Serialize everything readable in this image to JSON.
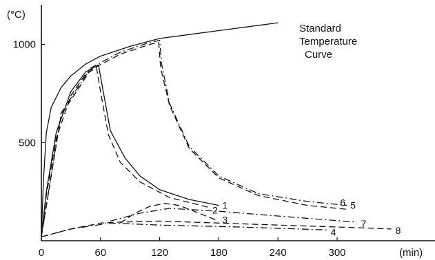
{
  "chart_data": {
    "type": "line",
    "xlabel": "(min)",
    "ylabel": "(°C)",
    "xlim": [
      0,
      330
    ],
    "ylim": [
      0,
      1100
    ],
    "xticks": [
      0,
      60,
      120,
      180,
      240,
      300
    ],
    "yticks": [
      500,
      1000
    ],
    "grid": false,
    "annotation": "Standard Temperature Curve",
    "series": [
      {
        "name": "Standard Temperature Curve",
        "style": "solid",
        "x": [
          0,
          2,
          5,
          10,
          20,
          30,
          45,
          60,
          90,
          120,
          150,
          180,
          210,
          240
        ],
        "y": [
          20,
          300,
          550,
          680,
          780,
          840,
          900,
          940,
          990,
          1030,
          1050,
          1070,
          1090,
          1110
        ]
      },
      {
        "name": "1",
        "label": "1",
        "style": "solid",
        "x": [
          0,
          5,
          15,
          30,
          45,
          58,
          62,
          70,
          85,
          100,
          120,
          150,
          180
        ],
        "y": [
          20,
          250,
          550,
          760,
          860,
          895,
          780,
          560,
          420,
          330,
          260,
          210,
          180
        ]
      },
      {
        "name": "2",
        "label": "2",
        "style": "dashed",
        "x": [
          0,
          5,
          15,
          30,
          45,
          56,
          60,
          68,
          80,
          100,
          130,
          170
        ],
        "y": [
          20,
          230,
          520,
          740,
          850,
          880,
          760,
          540,
          400,
          300,
          220,
          170
        ]
      },
      {
        "name": "3",
        "label": "3",
        "style": "dashed",
        "x": [
          80,
          95,
          110,
          125,
          140,
          155,
          170,
          180
        ],
        "y": [
          90,
          140,
          175,
          190,
          180,
          150,
          120,
          100
        ]
      },
      {
        "name": "4",
        "label": "4",
        "style": "dashdot",
        "x": [
          0,
          30,
          70,
          120,
          200,
          290
        ],
        "y": [
          20,
          60,
          90,
          80,
          70,
          55
        ]
      },
      {
        "name": "5",
        "label": "5",
        "style": "dashdot",
        "x": [
          0,
          20,
          50,
          80,
          110,
          120,
          122,
          130,
          150,
          180,
          220,
          270,
          310
        ],
        "y": [
          20,
          650,
          880,
          960,
          1010,
          1020,
          900,
          700,
          480,
          330,
          240,
          200,
          180
        ]
      },
      {
        "name": "6",
        "label": "6",
        "style": "dashed",
        "x": [
          0,
          20,
          50,
          80,
          110,
          119,
          121,
          130,
          150,
          180,
          220,
          270,
          310
        ],
        "y": [
          20,
          640,
          870,
          950,
          1000,
          1010,
          880,
          690,
          470,
          320,
          230,
          180,
          160
        ]
      },
      {
        "name": "7",
        "label": "7",
        "style": "dashdot",
        "x": [
          70,
          100,
          130,
          180,
          230,
          280,
          320
        ],
        "y": [
          100,
          140,
          165,
          150,
          130,
          110,
          95
        ]
      },
      {
        "name": "8",
        "label": "8",
        "style": "dashed",
        "x": [
          0,
          30,
          60,
          80,
          120,
          180,
          240,
          300,
          355
        ],
        "y": [
          20,
          60,
          90,
          95,
          100,
          90,
          80,
          70,
          60
        ]
      }
    ]
  }
}
